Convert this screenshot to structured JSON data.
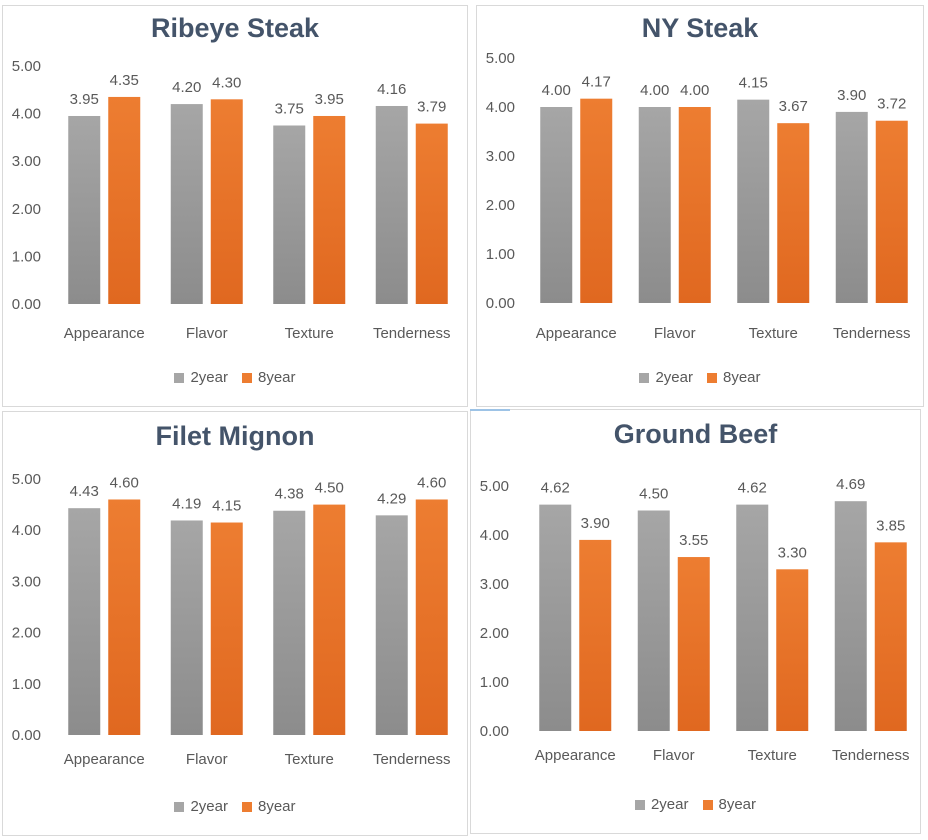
{
  "colors": {
    "series_2year": "#a6a6a6",
    "series_8year": "#ed7d31",
    "axis_text": "#595959",
    "title_text": "#44546a"
  },
  "chart_data": [
    {
      "type": "bar",
      "title": "Ribeye Steak",
      "categories": [
        "Appearance",
        "Flavor",
        "Texture",
        "Tenderness"
      ],
      "yticks": [
        "0.00",
        "1.00",
        "2.00",
        "3.00",
        "4.00",
        "5.00"
      ],
      "ylim": [
        0,
        5
      ],
      "grid": false,
      "legend": "bottom",
      "series": [
        {
          "name": "2year",
          "values": [
            3.95,
            4.2,
            3.75,
            4.16
          ],
          "labels": [
            "3.95",
            "4.20",
            "3.75",
            "4.16"
          ]
        },
        {
          "name": "8year",
          "values": [
            4.35,
            4.3,
            3.95,
            3.79
          ],
          "labels": [
            "4.35",
            "4.30",
            "3.95",
            "3.79"
          ]
        }
      ]
    },
    {
      "type": "bar",
      "title": "NY Steak",
      "categories": [
        "Appearance",
        "Flavor",
        "Texture",
        "Tenderness"
      ],
      "yticks": [
        "0.00",
        "1.00",
        "2.00",
        "3.00",
        "4.00",
        "5.00"
      ],
      "ylim": [
        0,
        5
      ],
      "grid": false,
      "legend": "bottom",
      "series": [
        {
          "name": "2year",
          "values": [
            4.0,
            4.0,
            4.15,
            3.9
          ],
          "labels": [
            "4.00",
            "4.00",
            "4.15",
            "3.90"
          ]
        },
        {
          "name": "8year",
          "values": [
            4.17,
            4.0,
            3.67,
            3.72
          ],
          "labels": [
            "4.17",
            "4.00",
            "3.67",
            "3.72"
          ]
        }
      ]
    },
    {
      "type": "bar",
      "title": "Filet Mignon",
      "categories": [
        "Appearance",
        "Flavor",
        "Texture",
        "Tenderness"
      ],
      "yticks": [
        "0.00",
        "1.00",
        "2.00",
        "3.00",
        "4.00",
        "5.00"
      ],
      "ylim": [
        0,
        5
      ],
      "grid": false,
      "legend": "bottom",
      "series": [
        {
          "name": "2year",
          "values": [
            4.43,
            4.19,
            4.38,
            4.29
          ],
          "labels": [
            "4.43",
            "4.19",
            "4.38",
            "4.29"
          ]
        },
        {
          "name": "8year",
          "values": [
            4.6,
            4.15,
            4.5,
            4.6
          ],
          "labels": [
            "4.60",
            "4.15",
            "4.50",
            "4.60"
          ]
        }
      ]
    },
    {
      "type": "bar",
      "title": "Ground Beef",
      "categories": [
        "Appearance",
        "Flavor",
        "Texture",
        "Tenderness"
      ],
      "yticks": [
        "0.00",
        "1.00",
        "2.00",
        "3.00",
        "4.00",
        "5.00"
      ],
      "ylim": [
        0,
        5
      ],
      "grid": false,
      "legend": "bottom",
      "series": [
        {
          "name": "2year",
          "values": [
            4.62,
            4.5,
            4.62,
            4.69
          ],
          "labels": [
            "4.62",
            "4.50",
            "4.62",
            "4.69"
          ]
        },
        {
          "name": "8year",
          "values": [
            3.9,
            3.55,
            3.3,
            3.85
          ],
          "labels": [
            "3.90",
            "3.55",
            "3.30",
            "3.85"
          ]
        }
      ]
    }
  ]
}
